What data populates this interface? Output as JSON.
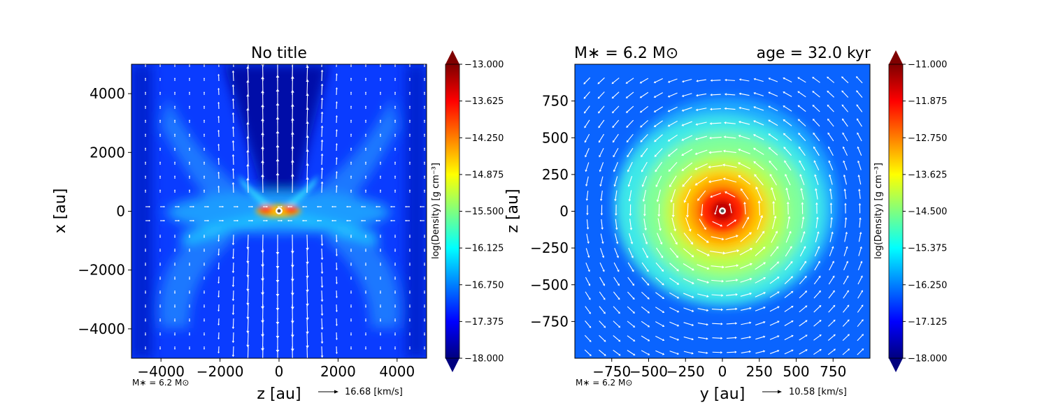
{
  "colors": {
    "jet": [
      "#00007f",
      "#0000ff",
      "#007fff",
      "#00ffff",
      "#7fff7f",
      "#ffff00",
      "#ff7f00",
      "#ff0000",
      "#7f0000"
    ],
    "arrow": "#ffffff",
    "marker_outer": "#ffffff",
    "marker_inner": "#555555"
  },
  "chart_data": [
    {
      "type": "heatmap",
      "title": "No title",
      "xlabel": "z [au]",
      "ylabel": "x [au]",
      "xlim": [
        -5000,
        5000
      ],
      "ylim": [
        -5000,
        5000
      ],
      "xticks": [
        -4000,
        -2000,
        0,
        2000,
        4000
      ],
      "xtick_labels": [
        "−4000",
        "−2000",
        "0",
        "2000",
        "4000"
      ],
      "yticks": [
        -4000,
        -2000,
        0,
        2000,
        4000
      ],
      "ytick_labels": [
        "−4000",
        "−2000",
        "0",
        "2000",
        "4000"
      ],
      "note": "M∗ = 6.2 M⊙",
      "velocity_key": "16.68 [km/s]",
      "colorbar": {
        "label": "log(Density) [g cm⁻³]",
        "range": [
          -18.0,
          -13.0
        ],
        "ticks": [
          -13.0,
          -13.625,
          -14.25,
          -14.875,
          -15.5,
          -16.125,
          -16.75,
          -17.375,
          -18.0
        ],
        "tick_labels": [
          "−13.000",
          "−13.625",
          "−14.250",
          "−14.875",
          "−15.500",
          "−16.125",
          "−16.750",
          "−17.375",
          "−18.000"
        ]
      },
      "star_position": [
        0,
        0
      ],
      "description": "edge-on density slice with bipolar outflow cavity along x and flattened disk along z"
    },
    {
      "type": "heatmap",
      "title_left": "M∗ = 6.2 M⊙",
      "title_right": "age = 32.0 kyr",
      "xlabel": "y [au]",
      "ylabel": "z [au]",
      "xlim": [
        -1000,
        1000
      ],
      "ylim": [
        -1000,
        1000
      ],
      "xticks": [
        -750,
        -500,
        -250,
        0,
        250,
        500,
        750
      ],
      "xtick_labels": [
        "−750",
        "−500",
        "−250",
        "0",
        "250",
        "500",
        "750"
      ],
      "yticks": [
        -750,
        -500,
        -250,
        0,
        250,
        500,
        750
      ],
      "ytick_labels": [
        "−750",
        "−500",
        "−250",
        "0",
        "250",
        "500",
        "750"
      ],
      "note": "M∗ = 6.2 M⊙",
      "velocity_key": "10.58 [km/s]",
      "colorbar": {
        "label": "log(Density) [g cm⁻³]",
        "range": [
          -18.0,
          -11.0
        ],
        "ticks": [
          -11.0,
          -11.875,
          -12.75,
          -13.625,
          -14.5,
          -15.375,
          -16.25,
          -17.125,
          -18.0
        ],
        "tick_labels": [
          "−11.000",
          "−11.875",
          "−12.750",
          "−13.625",
          "−14.500",
          "−15.375",
          "−16.250",
          "−17.125",
          "−18.000"
        ]
      },
      "star_position": [
        0,
        0
      ],
      "description": "face-on density slice showing rotating disk with counter-clockwise velocity field"
    }
  ]
}
